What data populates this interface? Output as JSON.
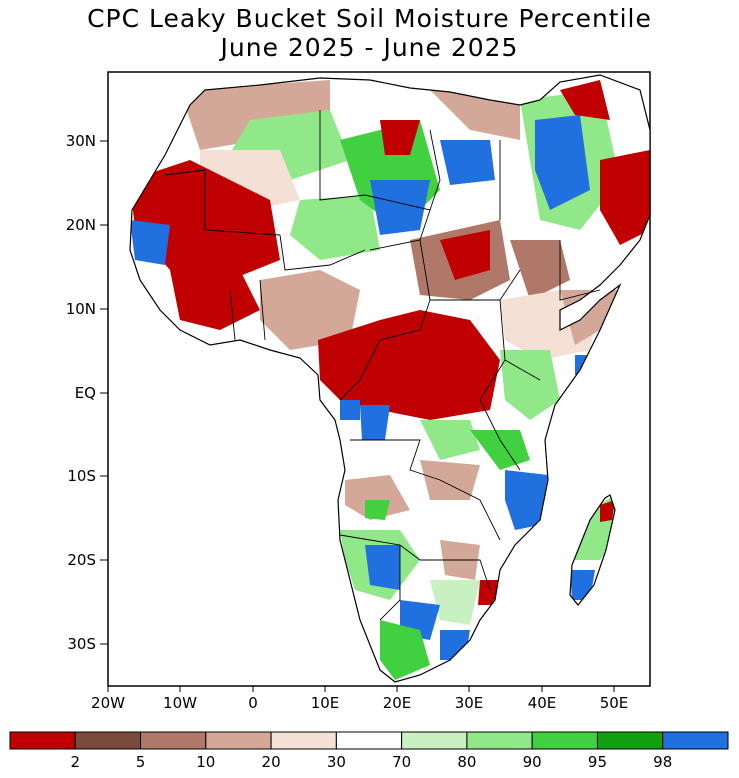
{
  "title": "CPC Leaky Bucket Soil Moisture Percentile",
  "subtitle": "June 2025 - June 2025",
  "axes": {
    "y_ticks": [
      "30N",
      "20N",
      "10N",
      "EQ",
      "10S",
      "20S",
      "30S"
    ],
    "x_ticks": [
      "20W",
      "10W",
      "0",
      "10E",
      "20E",
      "30E",
      "40E",
      "50E"
    ]
  },
  "legend": {
    "colors": [
      "#c00000",
      "#7a4a3a",
      "#b07868",
      "#d4a898",
      "#f4e0d4",
      "#ffffff",
      "#c8f0c0",
      "#90e888",
      "#40d040",
      "#10a010",
      "#2070e0"
    ],
    "labels": [
      "2",
      "5",
      "10",
      "20",
      "30",
      "70",
      "80",
      "90",
      "95",
      "98"
    ]
  },
  "colors": {
    "dry": "#c00000",
    "wet": "#2070e0",
    "border": "#000000"
  }
}
